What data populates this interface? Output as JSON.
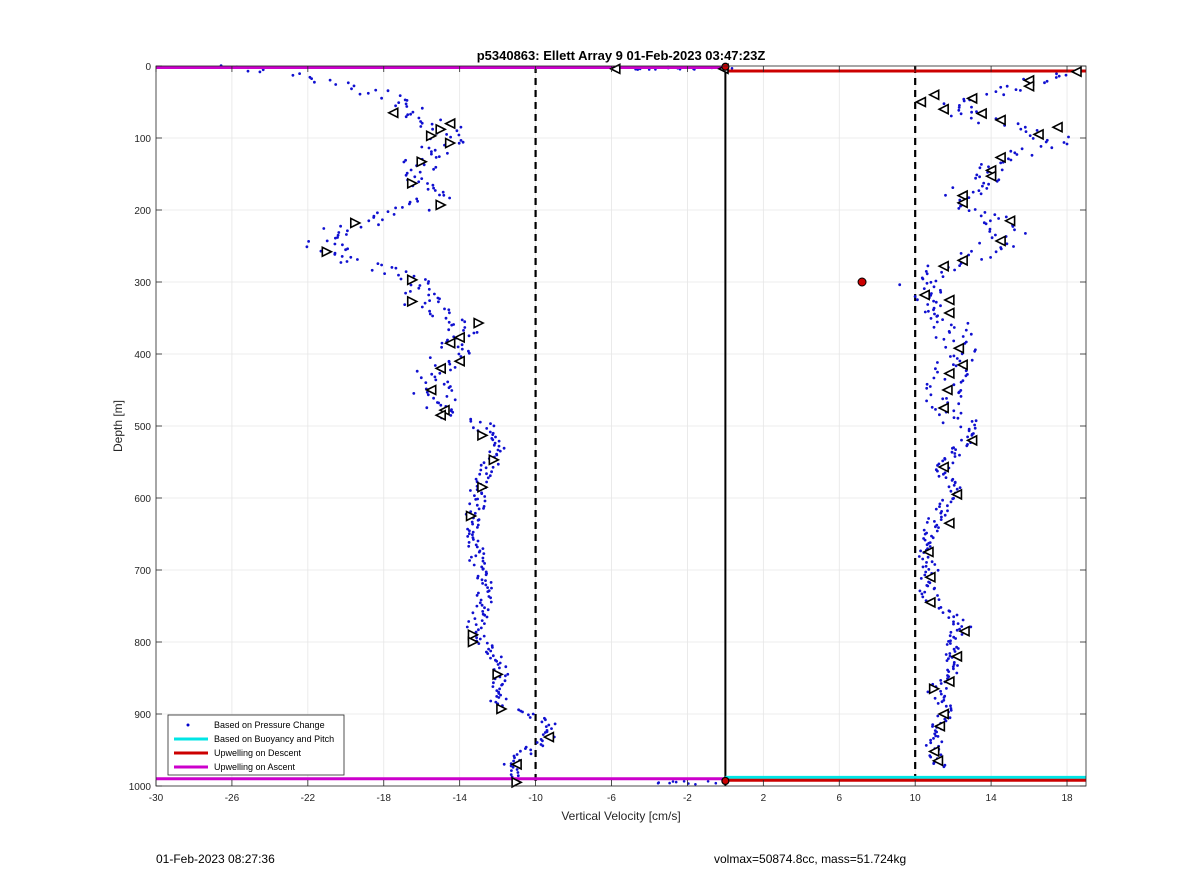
{
  "footer": {
    "timestamp": "01-Feb-2023 08:27:36",
    "stats": "volmax=50874.8cc, mass=51.724kg"
  },
  "chart_data": {
    "type": "scatter",
    "title": "p5340863: Ellett Array 9 01-Feb-2023 03:47:23Z",
    "xlabel": "Vertical Velocity [cm/s]",
    "ylabel": "Depth [m]",
    "xlim": [
      -30,
      19
    ],
    "ylim": [
      0,
      1000
    ],
    "y_reversed": true,
    "xticks": [
      -30,
      -26,
      -22,
      -18,
      -14,
      -10,
      -6,
      -2,
      2,
      6,
      10,
      14,
      18
    ],
    "yticks": [
      0,
      100,
      200,
      300,
      400,
      500,
      600,
      700,
      800,
      900,
      1000
    ],
    "grid": true,
    "legend_placement": "bottom-left",
    "legend": [
      {
        "label": "Based on Pressure Change",
        "color": "#0000cc",
        "style": "point"
      },
      {
        "label": "Based on Buoyancy and Pitch",
        "color": "#00e5e5",
        "style": "line"
      },
      {
        "label": "Upwelling on Descent",
        "color": "#cc0000",
        "style": "line"
      },
      {
        "label": "Upwelling on Ascent",
        "color": "#cc00cc",
        "style": "line"
      }
    ],
    "reference_lines": {
      "zero_line": {
        "x": 0,
        "color": "#000000",
        "style": "solid"
      },
      "dashed_lines": [
        {
          "x": -10,
          "color": "#000000"
        },
        {
          "x": 10,
          "color": "#000000"
        }
      ]
    },
    "descent_profile": {
      "name": "Based on Pressure Change",
      "depth": [
        0,
        15,
        30,
        45,
        60,
        75,
        90,
        105,
        120,
        135,
        150,
        165,
        180,
        195,
        210,
        225,
        240,
        255,
        270,
        285,
        300,
        315,
        330,
        345,
        360,
        375,
        390,
        405,
        420,
        435,
        450,
        465,
        480,
        495,
        510,
        525,
        540,
        555,
        570,
        585,
        600,
        615,
        630,
        645,
        660,
        675,
        690,
        705,
        720,
        735,
        750,
        765,
        780,
        795,
        810,
        825,
        840,
        855,
        870,
        885,
        900,
        915,
        930,
        945,
        960,
        975,
        990
      ],
      "velocity": [
        -26.0,
        -22.0,
        -19.5,
        -17.5,
        -16.5,
        -15.5,
        -14.8,
        -14.8,
        -15.5,
        -16.0,
        -16.5,
        -16.0,
        -15.5,
        -16.0,
        -18.0,
        -20.0,
        -21.0,
        -21.0,
        -19.5,
        -18.0,
        -16.5,
        -16.0,
        -16.0,
        -15.0,
        -13.5,
        -14.0,
        -14.5,
        -14.5,
        -15.0,
        -15.5,
        -15.5,
        -15.0,
        -14.5,
        -13.5,
        -12.5,
        -12.0,
        -12.0,
        -12.5,
        -12.8,
        -13.0,
        -13.0,
        -13.2,
        -13.4,
        -13.3,
        -13.3,
        -13.2,
        -13.0,
        -12.8,
        -12.6,
        -12.7,
        -12.8,
        -13.0,
        -13.2,
        -13.0,
        -12.5,
        -12.0,
        -11.8,
        -11.8,
        -12.0,
        -11.9,
        -10.5,
        -9.2,
        -9.3,
        -10.0,
        -11.0,
        -11.3,
        -11.0
      ],
      "markers": [
        {
          "depth": 65,
          "velocity": -17.5,
          "dir": "left"
        },
        {
          "depth": 80,
          "velocity": -14.5,
          "dir": "left"
        },
        {
          "depth": 88,
          "velocity": -15.0,
          "dir": "right"
        },
        {
          "depth": 97,
          "velocity": -15.5,
          "dir": "right"
        },
        {
          "depth": 107,
          "velocity": -14.5,
          "dir": "right"
        },
        {
          "depth": 133,
          "velocity": -16.0,
          "dir": "right"
        },
        {
          "depth": 163,
          "velocity": -16.5,
          "dir": "right"
        },
        {
          "depth": 193,
          "velocity": -15.0,
          "dir": "right"
        },
        {
          "depth": 218,
          "velocity": -19.5,
          "dir": "right"
        },
        {
          "depth": 258,
          "velocity": -21.0,
          "dir": "right"
        },
        {
          "depth": 297,
          "velocity": -16.5,
          "dir": "right"
        },
        {
          "depth": 327,
          "velocity": -16.5,
          "dir": "right"
        },
        {
          "depth": 357,
          "velocity": -13.0,
          "dir": "right"
        },
        {
          "depth": 377,
          "velocity": -14.0,
          "dir": "left"
        },
        {
          "depth": 385,
          "velocity": -14.5,
          "dir": "left"
        },
        {
          "depth": 410,
          "velocity": -14.0,
          "dir": "left"
        },
        {
          "depth": 420,
          "velocity": -15.0,
          "dir": "left"
        },
        {
          "depth": 450,
          "velocity": -15.5,
          "dir": "left"
        },
        {
          "depth": 478,
          "velocity": -14.8,
          "dir": "left"
        },
        {
          "depth": 485,
          "velocity": -15.0,
          "dir": "left"
        },
        {
          "depth": 513,
          "velocity": -12.8,
          "dir": "right"
        },
        {
          "depth": 547,
          "velocity": -12.2,
          "dir": "right"
        },
        {
          "depth": 585,
          "velocity": -12.8,
          "dir": "right"
        },
        {
          "depth": 625,
          "velocity": -13.4,
          "dir": "right"
        },
        {
          "depth": 790,
          "velocity": -13.3,
          "dir": "right"
        },
        {
          "depth": 800,
          "velocity": -13.3,
          "dir": "right"
        },
        {
          "depth": 845,
          "velocity": -12.0,
          "dir": "right"
        },
        {
          "depth": 893,
          "velocity": -11.8,
          "dir": "right"
        },
        {
          "depth": 932,
          "velocity": -9.3,
          "dir": "left"
        },
        {
          "depth": 970,
          "velocity": -11.0,
          "dir": "left"
        },
        {
          "depth": 995,
          "velocity": -11.0,
          "dir": "right"
        }
      ],
      "surface_points": [
        {
          "depth": 4,
          "velocity": -5.8,
          "dir": "left"
        },
        {
          "depth": 4,
          "velocity": -0.1,
          "dir": "left"
        }
      ]
    },
    "ascent_profile": {
      "name": "Based on Pressure Change",
      "depth": [
        10,
        20,
        30,
        45,
        60,
        75,
        90,
        105,
        120,
        135,
        150,
        165,
        180,
        195,
        210,
        225,
        240,
        255,
        270,
        285,
        300,
        315,
        330,
        345,
        360,
        375,
        390,
        405,
        420,
        435,
        450,
        465,
        480,
        495,
        510,
        525,
        540,
        555,
        570,
        585,
        600,
        615,
        630,
        645,
        660,
        675,
        690,
        705,
        720,
        735,
        750,
        765,
        780,
        795,
        810,
        825,
        840,
        855,
        870,
        885,
        900,
        915,
        930,
        945,
        960,
        975
      ],
      "velocity": [
        18.0,
        16.0,
        15.5,
        13.0,
        12.0,
        13.5,
        16.5,
        17.5,
        15.5,
        14.5,
        14.0,
        13.0,
        12.5,
        12.0,
        14.5,
        15.0,
        14.5,
        14.0,
        12.5,
        11.0,
        10.0,
        10.5,
        11.5,
        11.5,
        12.0,
        12.0,
        12.0,
        12.5,
        12.0,
        11.5,
        11.5,
        11.5,
        11.5,
        12.5,
        13.0,
        12.5,
        12.0,
        11.5,
        11.5,
        12.0,
        12.0,
        11.5,
        11.0,
        10.8,
        10.8,
        10.5,
        10.8,
        10.8,
        10.5,
        10.8,
        11.0,
        12.0,
        12.5,
        12.0,
        12.0,
        12.0,
        12.0,
        11.5,
        11.0,
        11.5,
        11.5,
        11.2,
        11.2,
        11.0,
        11.2,
        11.5
      ],
      "markers": [
        {
          "depth": 8,
          "velocity": 18.5,
          "dir": "left"
        },
        {
          "depth": 20,
          "velocity": 16.0,
          "dir": "left"
        },
        {
          "depth": 28,
          "velocity": 16.0,
          "dir": "left"
        },
        {
          "depth": 40,
          "velocity": 11.0,
          "dir": "left"
        },
        {
          "depth": 45,
          "velocity": 13.0,
          "dir": "left"
        },
        {
          "depth": 50,
          "velocity": 10.3,
          "dir": "left"
        },
        {
          "depth": 60,
          "velocity": 11.5,
          "dir": "left"
        },
        {
          "depth": 66,
          "velocity": 13.5,
          "dir": "left"
        },
        {
          "depth": 75,
          "velocity": 14.5,
          "dir": "left"
        },
        {
          "depth": 85,
          "velocity": 17.5,
          "dir": "left"
        },
        {
          "depth": 95,
          "velocity": 16.5,
          "dir": "left"
        },
        {
          "depth": 127,
          "velocity": 14.5,
          "dir": "left"
        },
        {
          "depth": 145,
          "velocity": 14.0,
          "dir": "left"
        },
        {
          "depth": 153,
          "velocity": 14.0,
          "dir": "left"
        },
        {
          "depth": 180,
          "velocity": 12.5,
          "dir": "left"
        },
        {
          "depth": 190,
          "velocity": 12.5,
          "dir": "left"
        },
        {
          "depth": 215,
          "velocity": 15.0,
          "dir": "left"
        },
        {
          "depth": 243,
          "velocity": 14.5,
          "dir": "left"
        },
        {
          "depth": 270,
          "velocity": 12.5,
          "dir": "left"
        },
        {
          "depth": 278,
          "velocity": 11.5,
          "dir": "left"
        },
        {
          "depth": 318,
          "velocity": 10.5,
          "dir": "left"
        },
        {
          "depth": 325,
          "velocity": 11.8,
          "dir": "left"
        },
        {
          "depth": 343,
          "velocity": 11.8,
          "dir": "left"
        },
        {
          "depth": 392,
          "velocity": 12.3,
          "dir": "left"
        },
        {
          "depth": 415,
          "velocity": 12.5,
          "dir": "left"
        },
        {
          "depth": 427,
          "velocity": 11.8,
          "dir": "left"
        },
        {
          "depth": 450,
          "velocity": 11.7,
          "dir": "left"
        },
        {
          "depth": 475,
          "velocity": 11.5,
          "dir": "left"
        },
        {
          "depth": 520,
          "velocity": 13.0,
          "dir": "left"
        },
        {
          "depth": 557,
          "velocity": 11.5,
          "dir": "left"
        },
        {
          "depth": 595,
          "velocity": 12.2,
          "dir": "left"
        },
        {
          "depth": 635,
          "velocity": 11.8,
          "dir": "left"
        },
        {
          "depth": 675,
          "velocity": 10.7,
          "dir": "left"
        },
        {
          "depth": 710,
          "velocity": 10.8,
          "dir": "left"
        },
        {
          "depth": 745,
          "velocity": 10.8,
          "dir": "left"
        },
        {
          "depth": 785,
          "velocity": 12.6,
          "dir": "left"
        },
        {
          "depth": 820,
          "velocity": 12.2,
          "dir": "left"
        },
        {
          "depth": 855,
          "velocity": 11.8,
          "dir": "left"
        },
        {
          "depth": 865,
          "velocity": 11.0,
          "dir": "right"
        },
        {
          "depth": 900,
          "velocity": 11.5,
          "dir": "left"
        },
        {
          "depth": 917,
          "velocity": 11.3,
          "dir": "left"
        },
        {
          "depth": 952,
          "velocity": 11.0,
          "dir": "left"
        },
        {
          "depth": 965,
          "velocity": 11.2,
          "dir": "left"
        }
      ],
      "red_point": {
        "depth": 300,
        "velocity": 7.2
      }
    },
    "horizontal_lines": [
      {
        "name": "Upwelling on Ascent",
        "depth": 2,
        "x_from": -30,
        "x_to": 0,
        "color": "#cc00cc"
      },
      {
        "name": "Upwelling on Descent",
        "depth": 7,
        "x_from": 0,
        "x_to": 19,
        "color": "#cc0000"
      },
      {
        "name": "Upwelling on Ascent",
        "depth": 990,
        "x_from": -30,
        "x_to": 0,
        "color": "#cc00cc"
      },
      {
        "name": "Based on Buoyancy and Pitch",
        "depth": 988,
        "x_from": 0,
        "x_to": 19,
        "color": "#00e5e5"
      },
      {
        "name": "Upwelling on Descent",
        "depth": 992,
        "x_from": 0,
        "x_to": 19,
        "color": "#cc0000"
      }
    ]
  }
}
